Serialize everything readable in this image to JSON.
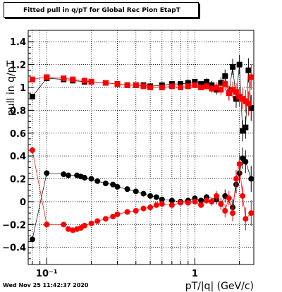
{
  "title": "Fitted pull in q/pT for Global Rec Pion EtapT",
  "timestamp": "Wed Nov 25 11:42:37 2020",
  "colors": {
    "black_series": "#000000",
    "red_series": "#ff0000",
    "background": "#ffffff"
  },
  "chart_data": {
    "type": "scatter",
    "xlabel": "pT/|q| (GeV/c)",
    "ylabel": "pull in q/pT",
    "xscale": "log",
    "xlim": [
      0.075,
      2.5
    ],
    "ylim": [
      -0.55,
      1.5
    ],
    "grid": true,
    "x_tick_labels": [
      "10⁻¹",
      "1"
    ],
    "x_tick_values": [
      0.1,
      1
    ],
    "y_tick_values": [
      -0.4,
      -0.2,
      0,
      0.2,
      0.4,
      0.6,
      0.8,
      1,
      1.2,
      1.4
    ],
    "y_tick_labels": [
      "−0.4",
      "−0.2",
      "0",
      "0.2",
      "0.4",
      "0.6",
      "0.8",
      "1",
      "1.2",
      "1.4"
    ],
    "series": [
      {
        "color": "#000000",
        "marker": "circle",
        "x": [
          0.08,
          0.1,
          0.13,
          0.14,
          0.16,
          0.17,
          0.18,
          0.2,
          0.22,
          0.25,
          0.28,
          0.3,
          0.35,
          0.4,
          0.45,
          0.5,
          0.55,
          0.6,
          0.7,
          0.8,
          0.9,
          1.0,
          1.1,
          1.2,
          1.4,
          1.5,
          1.6,
          1.8,
          1.9,
          2.0,
          2.1,
          2.2,
          2.4
        ],
        "y": [
          -0.33,
          0.25,
          0.24,
          0.23,
          0.23,
          0.22,
          0.21,
          0.2,
          0.18,
          0.16,
          0.15,
          0.13,
          0.11,
          0.09,
          0.07,
          0.05,
          0.04,
          0.02,
          0.01,
          0.0,
          0.01,
          0.03,
          0.01,
          0.04,
          0.02,
          -0.02,
          0.05,
          -0.05,
          0.15,
          0.25,
          0.38,
          0.35,
          0.2
        ]
      },
      {
        "color": "#000000",
        "marker": "square",
        "x": [
          0.08,
          0.1,
          0.13,
          0.15,
          0.18,
          0.2,
          0.25,
          0.3,
          0.35,
          0.4,
          0.45,
          0.5,
          0.6,
          0.7,
          0.8,
          0.9,
          1.0,
          1.1,
          1.2,
          1.3,
          1.4,
          1.5,
          1.6,
          1.7,
          1.8,
          1.9,
          2.0,
          2.1,
          2.2,
          2.3,
          2.4
        ],
        "y": [
          0.92,
          1.08,
          1.07,
          1.06,
          1.05,
          1.05,
          1.04,
          1.03,
          1.02,
          1.02,
          1.02,
          1.01,
          1.02,
          1.03,
          1.03,
          1.04,
          1.05,
          1.03,
          1.05,
          1.02,
          0.98,
          1.04,
          1.1,
          0.95,
          1.18,
          0.9,
          1.2,
          0.62,
          0.65,
          1.15,
          0.82
        ]
      },
      {
        "color": "#ff0000",
        "marker": "circle",
        "x": [
          0.08,
          0.1,
          0.13,
          0.14,
          0.15,
          0.16,
          0.17,
          0.18,
          0.2,
          0.22,
          0.25,
          0.28,
          0.3,
          0.35,
          0.4,
          0.45,
          0.5,
          0.55,
          0.6,
          0.7,
          0.8,
          0.9,
          1.0,
          1.1,
          1.2,
          1.3,
          1.4,
          1.5,
          1.6,
          1.7,
          1.8,
          1.9,
          2.0,
          2.1,
          2.2,
          2.4
        ],
        "y": [
          0.45,
          -0.2,
          -0.2,
          -0.24,
          -0.25,
          -0.24,
          -0.23,
          -0.21,
          -0.19,
          -0.17,
          -0.15,
          -0.13,
          -0.11,
          -0.09,
          -0.08,
          -0.06,
          -0.05,
          -0.03,
          -0.02,
          -0.03,
          -0.01,
          -0.01,
          0.0,
          -0.03,
          0.01,
          0.0,
          0.05,
          -0.02,
          -0.08,
          0.03,
          -0.1,
          0.2,
          0.33,
          0.05,
          -0.15,
          -0.1
        ]
      },
      {
        "color": "#ff0000",
        "marker": "square",
        "x": [
          0.08,
          0.1,
          0.13,
          0.15,
          0.18,
          0.2,
          0.25,
          0.3,
          0.35,
          0.4,
          0.45,
          0.5,
          0.6,
          0.7,
          0.8,
          0.9,
          1.0,
          1.1,
          1.2,
          1.3,
          1.4,
          1.5,
          1.6,
          1.7,
          1.8,
          1.9,
          2.0,
          2.1,
          2.2,
          2.3,
          2.4
        ],
        "y": [
          1.07,
          1.09,
          1.08,
          1.07,
          1.06,
          1.05,
          1.04,
          1.03,
          1.02,
          1.02,
          1.01,
          1.0,
          1.0,
          1.01,
          1.0,
          1.01,
          1.02,
          1.0,
          1.01,
          0.99,
          1.0,
          0.98,
          1.03,
          0.95,
          0.98,
          0.96,
          0.92,
          0.9,
          0.88,
          0.86,
          1.09
        ]
      }
    ]
  }
}
